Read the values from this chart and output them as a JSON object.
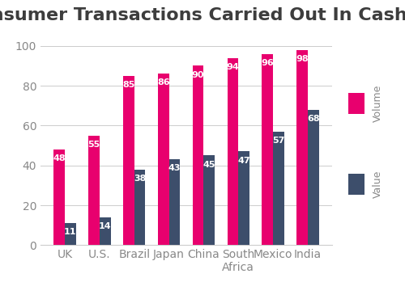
{
  "title": "Consumer Transactions Carried Out In Cash",
  "categories": [
    "UK",
    "U.S.",
    "Brazil",
    "Japan",
    "China",
    "South\nAfrica",
    "Mexico",
    "India"
  ],
  "volume": [
    48,
    55,
    85,
    86,
    90,
    94,
    96,
    98
  ],
  "value": [
    11,
    14,
    38,
    43,
    45,
    47,
    57,
    68
  ],
  "volume_color": "#E8006E",
  "value_color": "#3D4E6B",
  "title_color": "#3D3D3D",
  "ylim": [
    0,
    105
  ],
  "yticks": [
    0,
    20,
    40,
    60,
    80,
    100
  ],
  "bar_width": 0.32,
  "legend_volume": "Volume",
  "legend_value": "Value",
  "background_color": "#FFFFFF",
  "grid_color": "#CCCCCC",
  "title_fontsize": 16,
  "tick_fontsize": 10,
  "bar_label_fontsize": 8,
  "legend_fontsize": 9
}
